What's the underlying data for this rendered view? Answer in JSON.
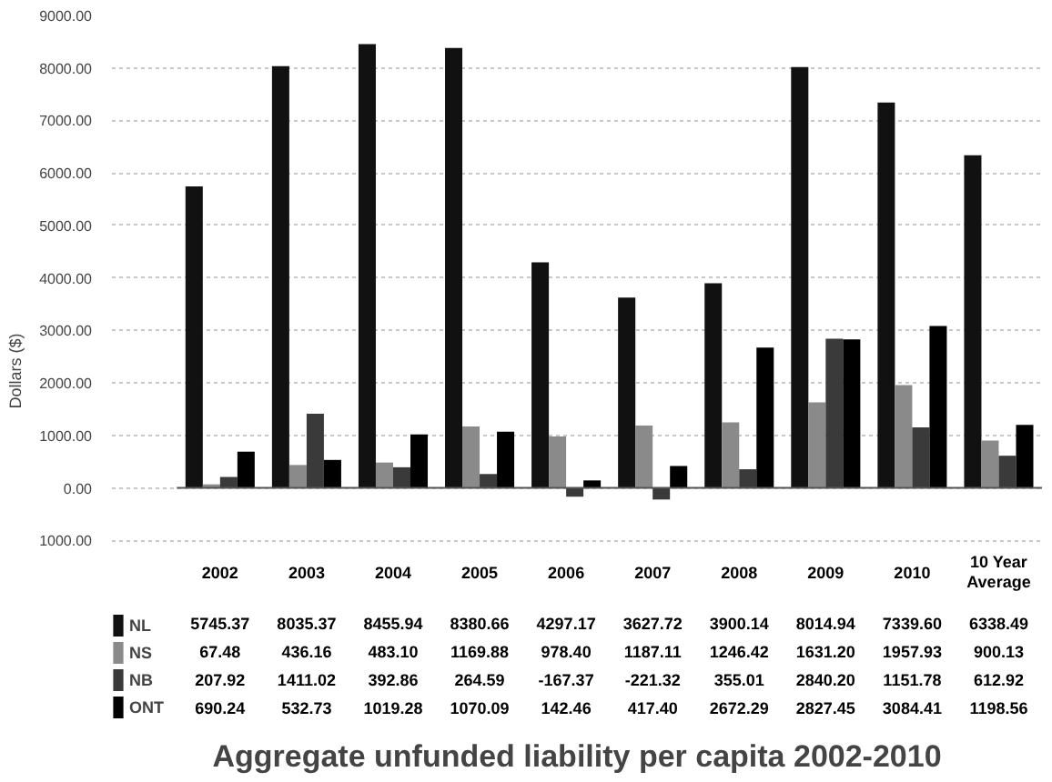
{
  "chart_data": {
    "type": "bar",
    "title": "Aggregate unfunded liability per capita 2002-2010",
    "ylabel": "Dollars ($)",
    "categories": [
      "2002",
      "2003",
      "2004",
      "2005",
      "2006",
      "2007",
      "2008",
      "2009",
      "2010",
      "10 Year Average"
    ],
    "series": [
      {
        "name": "NL",
        "color": "#111111",
        "values": [
          5745.37,
          8035.37,
          8455.94,
          8380.66,
          4297.17,
          3627.72,
          3900.14,
          8014.94,
          7339.6,
          6338.49
        ],
        "value_labels": [
          "5745.37",
          "8035.37",
          "8455.94",
          "8380.66",
          "4297.17",
          "3627.72",
          "3900.14",
          "8014.94",
          "7339.60",
          "6338.49"
        ]
      },
      {
        "name": "NS",
        "color": "#8a8a8a",
        "values": [
          67.48,
          436.16,
          483.1,
          1169.88,
          978.4,
          1187.11,
          1246.42,
          1631.2,
          1957.93,
          900.13
        ],
        "value_labels": [
          "67.48",
          "436.16",
          "483.10",
          "1169.88",
          "978.40",
          "1187.11",
          "1246.42",
          "1631.20",
          "1957.93",
          "900.13"
        ]
      },
      {
        "name": "NB",
        "color": "#3a3a3a",
        "values": [
          207.92,
          1411.02,
          392.86,
          264.59,
          -167.37,
          -221.32,
          355.01,
          2840.2,
          1151.78,
          612.92
        ],
        "value_labels": [
          "207.92",
          "1411.02",
          "392.86",
          "264.59",
          "-167.37",
          "-221.32",
          "355.01",
          "2840.20",
          "1151.78",
          "612.92"
        ]
      },
      {
        "name": "ONT",
        "color": "#000000",
        "values": [
          690.24,
          532.73,
          1019.28,
          1070.09,
          142.46,
          417.4,
          2672.29,
          2827.45,
          3084.41,
          1198.56
        ],
        "value_labels": [
          "690.24",
          "532.73",
          "1019.28",
          "1070.09",
          "142.46",
          "417.40",
          "2672.29",
          "2827.45",
          "3084.41",
          "1198.56"
        ]
      }
    ],
    "ylim": [
      -1000,
      9000
    ],
    "yticks": [
      {
        "value": -1000,
        "label": "1000.00"
      },
      {
        "value": 0,
        "label": "0.00"
      },
      {
        "value": 1000,
        "label": "1000.00"
      },
      {
        "value": 2000,
        "label": "2000.00"
      },
      {
        "value": 3000,
        "label": "3000.00"
      },
      {
        "value": 4000,
        "label": "4000.00"
      },
      {
        "value": 5000,
        "label": "5000.00"
      },
      {
        "value": 6000,
        "label": "6000.00"
      },
      {
        "value": 7000,
        "label": "7000.00"
      },
      {
        "value": 8000,
        "label": "8000.00"
      },
      {
        "value": 9000,
        "label": "9000.00"
      }
    ],
    "grid": "y",
    "legend": "bottom"
  }
}
